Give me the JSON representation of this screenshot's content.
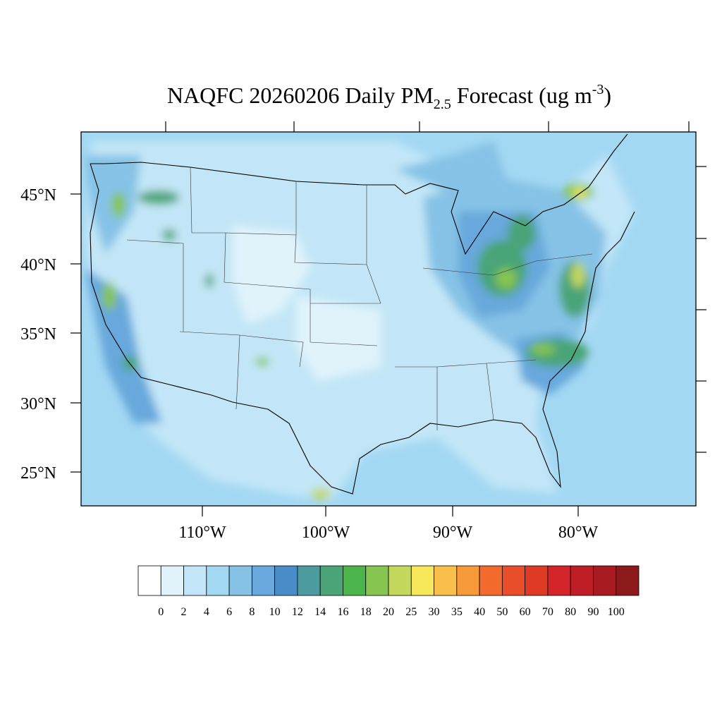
{
  "title": {
    "main": "NAQFC 20260206 Daily PM",
    "subscript": "2.5",
    "middle": " Forecast (ug m",
    "superscript": "-3",
    "end": ")"
  },
  "latitude_labels": [
    "45°N",
    "40°N",
    "35°N",
    "30°N",
    "25°N"
  ],
  "longitude_labels": [
    "110°W",
    "100°W",
    "90°W",
    "80°W"
  ],
  "colorbar": {
    "levels": [
      0,
      2,
      4,
      6,
      8,
      10,
      12,
      14,
      16,
      18,
      20,
      25,
      30,
      35,
      40,
      50,
      60,
      70,
      80,
      90,
      100
    ],
    "colors": [
      "#ffffff",
      "#e0f3fb",
      "#c2e6f7",
      "#a3d8f3",
      "#85c2e6",
      "#68a8dc",
      "#4a8cc8",
      "#4b9b9f",
      "#4aa477",
      "#4bb44a",
      "#85c550",
      "#c3d85c",
      "#f6e85a",
      "#f8c04a",
      "#f79a3a",
      "#f26b2c",
      "#e94e2b",
      "#de3a26",
      "#d22429",
      "#bf1e26",
      "#a91b22",
      "#8c1a1a"
    ]
  }
}
